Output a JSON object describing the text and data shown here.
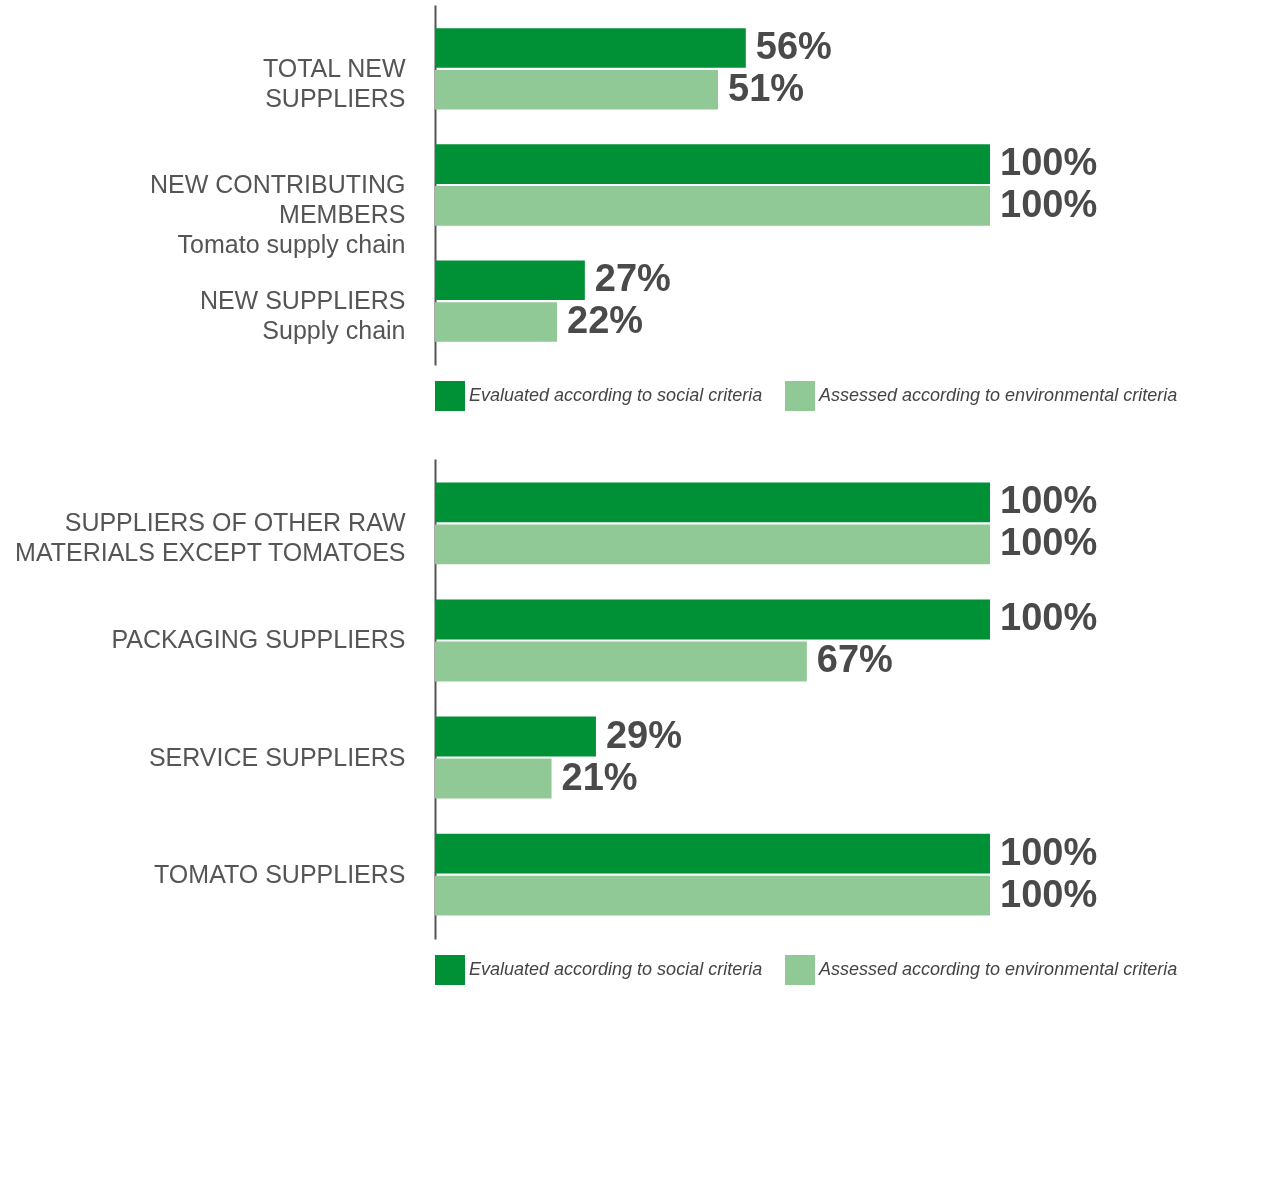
{
  "chart_data": [
    {
      "type": "bar",
      "orientation": "horizontal",
      "categories": [
        "TOTAL NEW\nSUPPLIERS",
        "NEW CONTRIBUTING\nMEMBERS\nTomato supply chain",
        "NEW SUPPLIERS\nSupply chain"
      ],
      "series": [
        {
          "name": "Evaluated according to social criteria",
          "color": "#009036",
          "values": [
            56,
            100,
            27
          ],
          "value_labels": [
            "56%",
            "100%",
            "27%"
          ]
        },
        {
          "name": "Assessed according to environmental criteria",
          "color": "#90c896",
          "values": [
            51,
            100,
            22
          ],
          "value_labels": [
            "51%",
            "100%",
            "22%"
          ]
        }
      ],
      "legend": "bottom"
    },
    {
      "type": "bar",
      "orientation": "horizontal",
      "categories": [
        "SUPPLIERS OF OTHER RAW\nMATERIALS EXCEPT TOMATOES",
        "PACKAGING SUPPLIERS",
        "SERVICE SUPPLIERS",
        "TOMATO SUPPLIERS"
      ],
      "series": [
        {
          "name": "Evaluated according to social criteria",
          "color": "#009036",
          "values": [
            100,
            100,
            29,
            100
          ],
          "value_labels": [
            "100%",
            "100%",
            "29%",
            "100%"
          ]
        },
        {
          "name": "Assessed according to environmental criteria",
          "color": "#90c896",
          "values": [
            100,
            67,
            21,
            100
          ],
          "value_labels": [
            "100%",
            "67%",
            "21%",
            "100%"
          ]
        }
      ],
      "legend": "bottom"
    }
  ]
}
